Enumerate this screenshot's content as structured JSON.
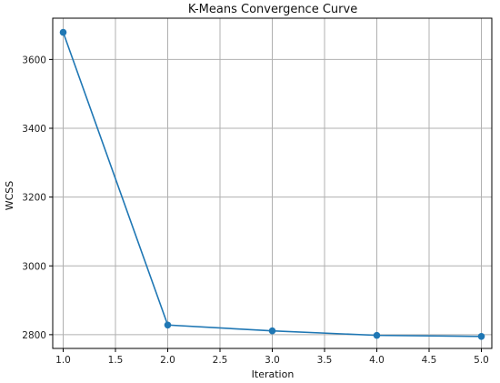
{
  "chart_data": {
    "type": "line",
    "title": "K-Means Convergence Curve",
    "xlabel": "Iteration",
    "ylabel": "WCSS",
    "xlim": [
      0.9,
      5.1
    ],
    "ylim": [
      2760,
      3720
    ],
    "xticks": [
      1.0,
      1.5,
      2.0,
      2.5,
      3.0,
      3.5,
      4.0,
      4.5,
      5.0
    ],
    "xtick_labels": [
      "1.0",
      "1.5",
      "2.0",
      "2.5",
      "3.0",
      "3.5",
      "4.0",
      "4.5",
      "5.0"
    ],
    "yticks": [
      2800,
      3000,
      3200,
      3400,
      3600
    ],
    "ytick_labels": [
      "2800",
      "3000",
      "3200",
      "3400",
      "3600"
    ],
    "grid": true,
    "series": [
      {
        "x": [
          1.0,
          2.0,
          3.0,
          4.0,
          5.0
        ],
        "y": [
          3679,
          2828,
          2811,
          2798,
          2795
        ],
        "color": "#1f77b4",
        "marker": "circle"
      }
    ]
  }
}
